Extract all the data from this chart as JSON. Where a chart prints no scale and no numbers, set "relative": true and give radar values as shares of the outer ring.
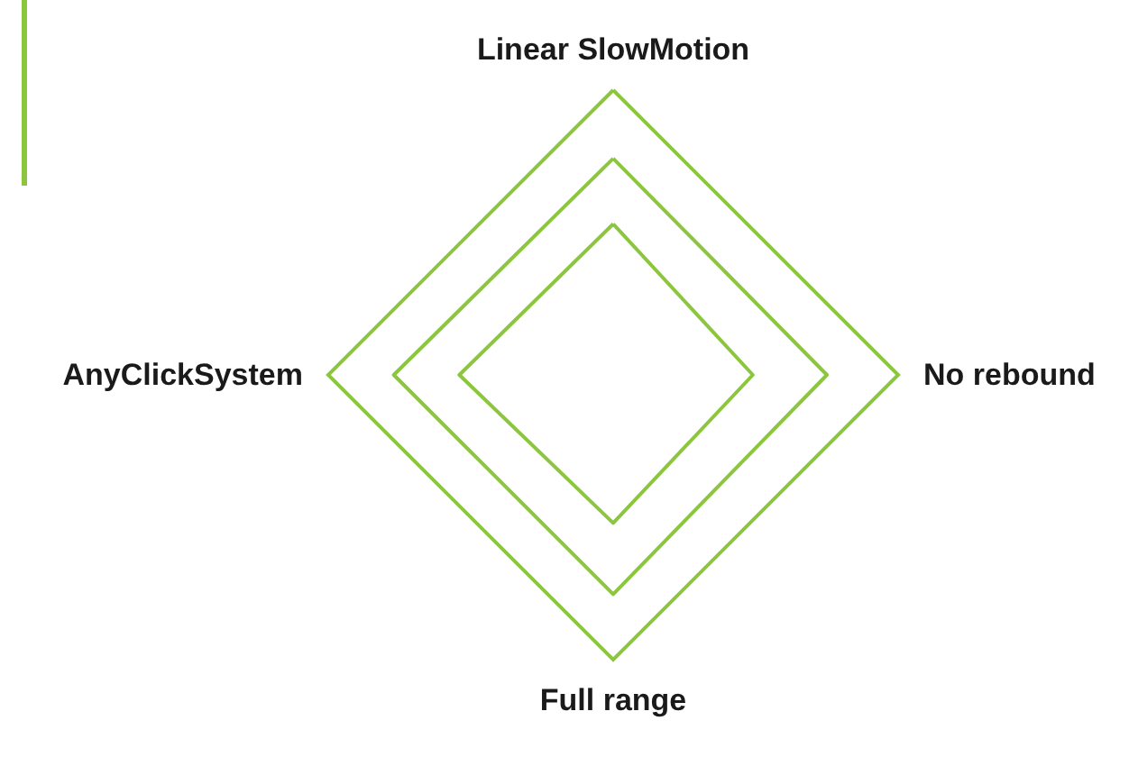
{
  "chart_data": {
    "type": "radar",
    "relative": true,
    "categories": [
      "Linear SlowMotion",
      "No rebound",
      "Full range",
      "AnyClickSystem"
    ],
    "series": [
      {
        "color": "#8cc63f",
        "values": [
          0.76,
          0.75,
          0.77,
          0.77
        ]
      },
      {
        "color": "#8cc63f",
        "values": [
          0.53,
          0.49,
          0.52,
          0.54
        ]
      }
    ]
  }
}
